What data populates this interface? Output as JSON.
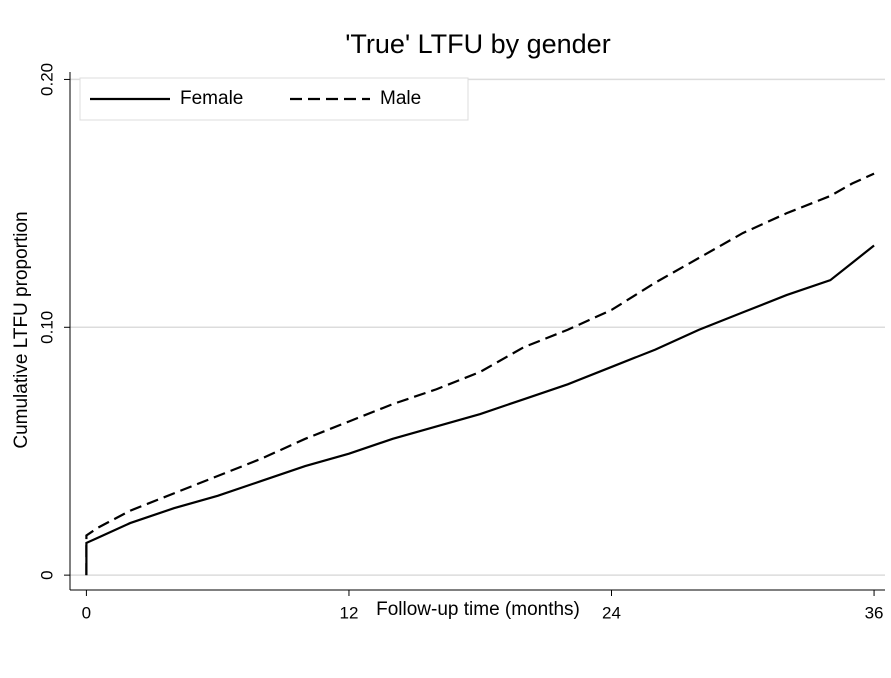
{
  "chart_data": {
    "type": "line",
    "title": "'True' LTFU by gender",
    "x_label": "Follow-up time (months)",
    "y_label": "Cumulative LTFU proportion",
    "x": [
      0,
      0,
      0.5,
      2,
      4,
      6,
      8,
      10,
      12,
      14,
      16,
      18,
      20,
      22,
      24,
      26,
      28,
      30,
      32,
      34,
      35,
      36
    ],
    "series": [
      {
        "name": "Female",
        "color": "#000000",
        "dash": "solid",
        "values": [
          0,
          0.013,
          0.015,
          0.021,
          0.027,
          0.032,
          0.038,
          0.044,
          0.049,
          0.055,
          0.06,
          0.065,
          0.071,
          0.077,
          0.084,
          0.091,
          0.099,
          0.106,
          0.113,
          0.119,
          0.126,
          0.133
        ]
      },
      {
        "name": "Male",
        "color": "#000000",
        "dash": "dashed",
        "values": [
          0,
          0.016,
          0.019,
          0.026,
          0.033,
          0.04,
          0.047,
          0.055,
          0.062,
          0.069,
          0.075,
          0.082,
          0.092,
          0.099,
          0.107,
          0.118,
          0.128,
          0.138,
          0.146,
          0.153,
          0.158,
          0.162
        ]
      }
    ],
    "xlim": [
      -0.75,
      36.5
    ],
    "xticks": [
      0,
      12,
      24,
      36
    ],
    "ylim": [
      -0.006,
      0.203
    ],
    "yticks": [
      0,
      {
        "value": 0.1,
        "label": "0.10"
      },
      {
        "value": 0.2,
        "label": "0.20"
      }
    ],
    "grid": true,
    "legend": "top-left"
  }
}
